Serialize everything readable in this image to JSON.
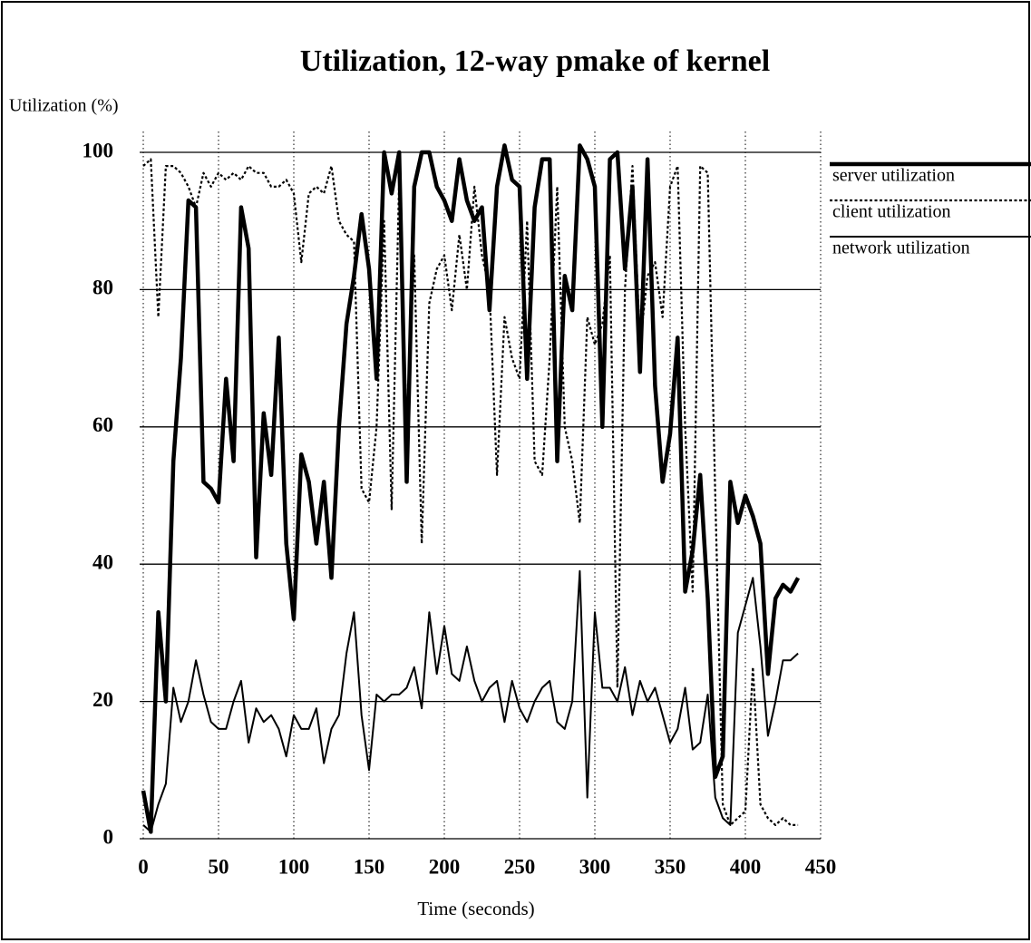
{
  "chart_data": {
    "type": "line",
    "title": "Utilization, 12-way pmake of kernel",
    "y_label": "Utilization (%)",
    "x_label": "Time (seconds)",
    "xlim": [
      0,
      450
    ],
    "ylim": [
      0,
      100
    ],
    "xticks": [
      0,
      50,
      100,
      150,
      200,
      250,
      300,
      350,
      400,
      450
    ],
    "yticks": [
      0,
      20,
      40,
      60,
      80,
      100
    ],
    "grid": true,
    "legend": "right",
    "x": [
      0,
      5,
      10,
      15,
      20,
      25,
      30,
      35,
      40,
      45,
      50,
      55,
      60,
      65,
      70,
      75,
      80,
      85,
      90,
      95,
      100,
      105,
      110,
      115,
      120,
      125,
      130,
      135,
      140,
      145,
      150,
      155,
      160,
      165,
      170,
      175,
      180,
      185,
      190,
      195,
      200,
      205,
      210,
      215,
      220,
      225,
      230,
      235,
      240,
      245,
      250,
      255,
      260,
      265,
      270,
      275,
      280,
      285,
      290,
      295,
      300,
      305,
      310,
      315,
      320,
      325,
      330,
      335,
      340,
      345,
      350,
      355,
      360,
      365,
      370,
      375,
      380,
      385,
      390,
      395,
      400,
      405,
      410,
      415,
      420,
      425,
      430,
      435
    ],
    "series": [
      {
        "name": "server utilization",
        "color": "#000000",
        "line_width": 4.5,
        "dashed": false,
        "values": [
          7,
          1,
          33,
          20,
          55,
          70,
          93,
          92,
          52,
          51,
          49,
          67,
          55,
          92,
          86,
          41,
          62,
          53,
          73,
          43,
          32,
          56,
          52,
          43,
          52,
          38,
          60,
          75,
          82,
          91,
          83,
          67,
          100,
          94,
          100,
          52,
          95,
          100,
          100,
          95,
          93,
          90,
          99,
          93,
          90,
          92,
          77,
          95,
          101,
          96,
          95,
          67,
          92,
          99,
          99,
          55,
          82,
          77,
          101,
          99,
          95,
          60,
          99,
          100,
          83,
          95,
          68,
          99,
          66,
          52,
          59,
          73,
          36,
          42,
          53,
          35,
          9,
          12,
          52,
          46,
          50,
          47,
          43,
          24,
          35,
          37,
          36,
          38
        ]
      },
      {
        "name": "client utilization",
        "color": "#000000",
        "line_width": 2.2,
        "dashed": true,
        "values": [
          98,
          99,
          76,
          98,
          98,
          97,
          95,
          92,
          97,
          95,
          97,
          96,
          97,
          96,
          98,
          97,
          97,
          95,
          95,
          96,
          94,
          84,
          94,
          95,
          94,
          98,
          90,
          88,
          87,
          51,
          49,
          60,
          90,
          48,
          96,
          60,
          85,
          43,
          78,
          83,
          85,
          77,
          88,
          80,
          95,
          85,
          80,
          53,
          76,
          70,
          67,
          90,
          55,
          53,
          70,
          95,
          60,
          55,
          46,
          76,
          72,
          75,
          85,
          22,
          80,
          98,
          72,
          82,
          84,
          76,
          95,
          98,
          60,
          36,
          98,
          97,
          50,
          5,
          2,
          3,
          4,
          25,
          5,
          3,
          2,
          3,
          2,
          2
        ]
      },
      {
        "name": "network utilization",
        "color": "#000000",
        "line_width": 2,
        "dashed": false,
        "values": [
          2,
          1,
          5,
          8,
          22,
          17,
          20,
          26,
          21,
          17,
          16,
          16,
          20,
          23,
          14,
          19,
          17,
          18,
          16,
          12,
          18,
          16,
          16,
          19,
          11,
          16,
          18,
          27,
          33,
          18,
          10,
          21,
          20,
          21,
          21,
          22,
          25,
          19,
          33,
          24,
          31,
          24,
          23,
          28,
          23,
          20,
          22,
          23,
          17,
          23,
          19,
          17,
          20,
          22,
          23,
          17,
          16,
          20,
          39,
          6,
          33,
          22,
          22,
          20,
          25,
          18,
          23,
          20,
          22,
          18,
          14,
          16,
          22,
          13,
          14,
          21,
          6,
          3,
          2,
          30,
          34,
          38,
          28,
          15,
          20,
          26,
          26,
          27
        ]
      }
    ]
  }
}
